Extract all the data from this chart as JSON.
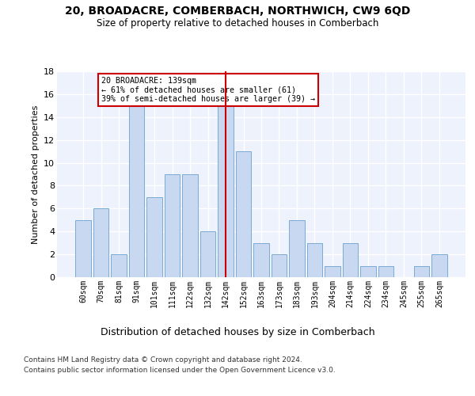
{
  "title": "20, BROADACRE, COMBERBACH, NORTHWICH, CW9 6QD",
  "subtitle": "Size of property relative to detached houses in Comberbach",
  "xlabel": "Distribution of detached houses by size in Comberbach",
  "ylabel": "Number of detached properties",
  "categories": [
    "60sqm",
    "70sqm",
    "81sqm",
    "91sqm",
    "101sqm",
    "111sqm",
    "122sqm",
    "132sqm",
    "142sqm",
    "152sqm",
    "163sqm",
    "173sqm",
    "183sqm",
    "193sqm",
    "204sqm",
    "214sqm",
    "224sqm",
    "234sqm",
    "245sqm",
    "255sqm",
    "265sqm"
  ],
  "values": [
    5,
    6,
    2,
    15,
    7,
    9,
    9,
    4,
    15,
    11,
    3,
    2,
    5,
    3,
    1,
    3,
    1,
    1,
    0,
    1,
    2
  ],
  "bar_color": "#c8d8f0",
  "bar_edge_color": "#7aaad4",
  "highlight_index": 8,
  "highlight_line_color": "#cc0000",
  "annotation_text": "20 BROADACRE: 139sqm\n← 61% of detached houses are smaller (61)\n39% of semi-detached houses are larger (39) →",
  "annotation_box_color": "#ffffff",
  "annotation_box_edge_color": "#cc0000",
  "ylim": [
    0,
    18
  ],
  "yticks": [
    0,
    2,
    4,
    6,
    8,
    10,
    12,
    14,
    16,
    18
  ],
  "background_color": "#eef2fc",
  "grid_color": "#ffffff",
  "footer_line1": "Contains HM Land Registry data © Crown copyright and database right 2024.",
  "footer_line2": "Contains public sector information licensed under the Open Government Licence v3.0."
}
